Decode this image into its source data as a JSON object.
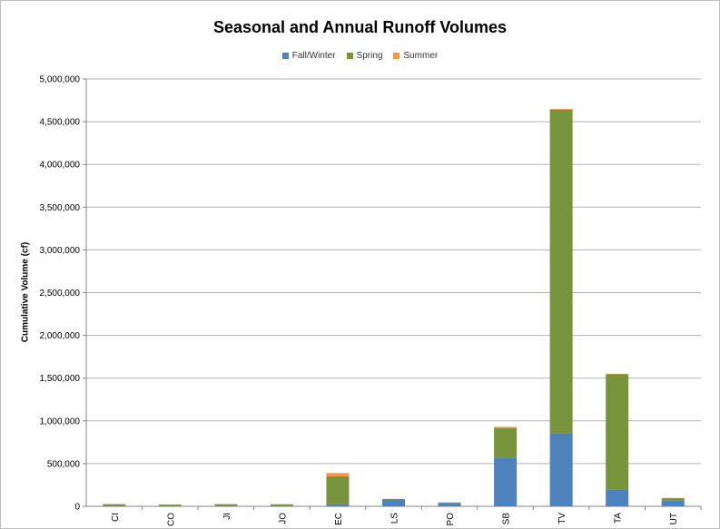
{
  "chart_data": {
    "type": "bar",
    "stacked": true,
    "title": "Seasonal and Annual Runoff Volumes",
    "xlabel": "",
    "ylabel": "Cumulative Volume (cf)",
    "ylim": [
      0,
      5000000
    ],
    "yticks": [
      0,
      500000,
      1000000,
      1500000,
      2000000,
      2500000,
      3000000,
      3500000,
      4000000,
      4500000,
      5000000
    ],
    "ytick_labels": [
      "0",
      "500,000",
      "1,000,000",
      "1,500,000",
      "2,000,000",
      "2,500,000",
      "3,000,000",
      "3,500,000",
      "4,000,000",
      "4,500,000",
      "5,000,000"
    ],
    "grid": true,
    "legend_position": "top",
    "categories": [
      "CI",
      "CO",
      "JI",
      "JO",
      "EC",
      "LS",
      "PO",
      "SB",
      "TV",
      "TA",
      "UT"
    ],
    "series": [
      {
        "name": "Fall/Winter",
        "color": "#4f81bd",
        "values": [
          5000,
          3000,
          5000,
          3000,
          30000,
          80000,
          40000,
          570000,
          850000,
          200000,
          65000
        ]
      },
      {
        "name": "Spring",
        "color": "#77933c",
        "values": [
          20000,
          17000,
          20000,
          20000,
          320000,
          5000,
          5000,
          345000,
          3790000,
          1345000,
          30000
        ]
      },
      {
        "name": "Summer",
        "color": "#f79646",
        "values": [
          2000,
          1000,
          2000,
          2000,
          40000,
          2000,
          1000,
          15000,
          10000,
          5000,
          3000
        ]
      }
    ]
  }
}
